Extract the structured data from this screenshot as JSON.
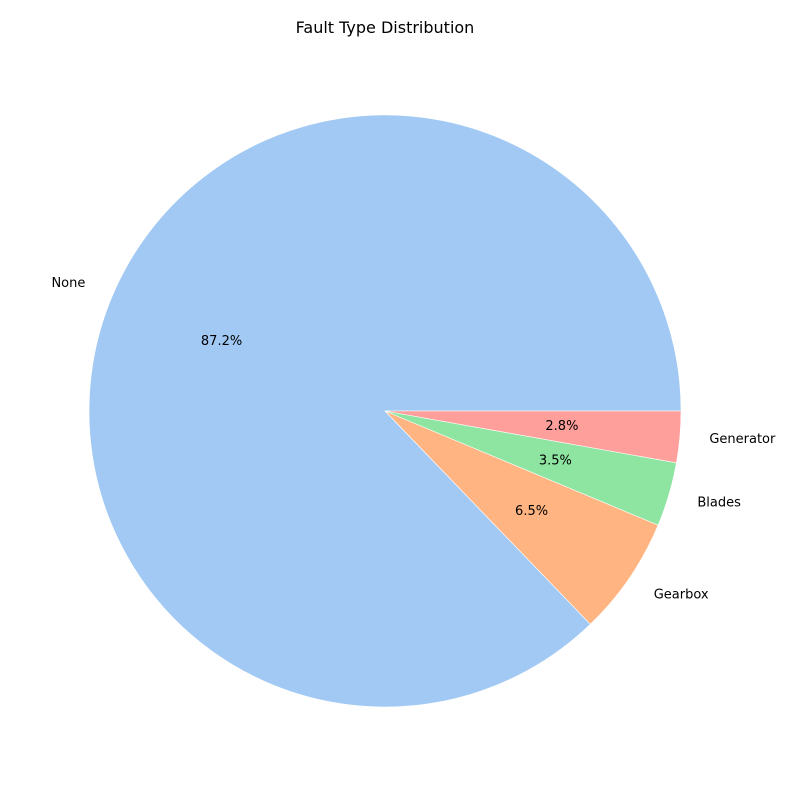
{
  "chart_data": {
    "type": "pie",
    "title": "Fault Type Distribution",
    "start_angle_deg": 0,
    "direction": "counterclockwise",
    "slices": [
      {
        "label": "None",
        "value": 87.2,
        "pct_label": "87.2%",
        "color": "#a1c9f4"
      },
      {
        "label": "Gearbox",
        "value": 6.5,
        "pct_label": "6.5%",
        "color": "#ffb482"
      },
      {
        "label": "Blades",
        "value": 3.5,
        "pct_label": "3.5%",
        "color": "#8de5a1"
      },
      {
        "label": "Generator",
        "value": 2.8,
        "pct_label": "2.8%",
        "color": "#ff9f9b"
      }
    ]
  }
}
